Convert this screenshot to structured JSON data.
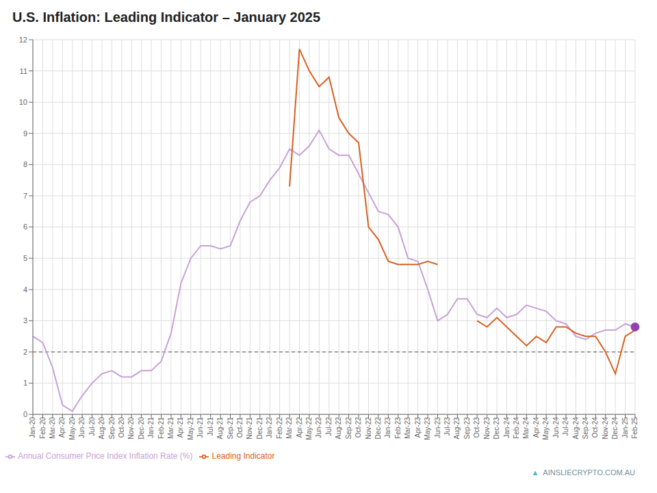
{
  "chart_data": {
    "type": "line",
    "title": "U.S. Inflation: Leading Indicator – January 2025",
    "categories": [
      "Jan-20",
      "Feb-20",
      "Mar-20",
      "Apr-20",
      "May-20",
      "Jun-20",
      "Jul-20",
      "Aug-20",
      "Sep-20",
      "Oct-20",
      "Nov-20",
      "Dec-20",
      "Jan-21",
      "Feb-21",
      "Mar-21",
      "Apr-21",
      "May-21",
      "Jun-21",
      "Jul-21",
      "Aug-21",
      "Sep-21",
      "Oct-21",
      "Nov-21",
      "Dec-21",
      "Jan-22",
      "Feb-22",
      "Mar-22",
      "Apr-22",
      "May-22",
      "Jun-22",
      "Jul-22",
      "Aug-22",
      "Sep-22",
      "Oct-22",
      "Nov-22",
      "Dec-22",
      "Jan-23",
      "Feb-23",
      "Mar-23",
      "Apr-23",
      "May-23",
      "Jun-23",
      "Jul-23",
      "Aug-23",
      "Sep-23",
      "Oct-23",
      "Nov-23",
      "Dec-23",
      "Jan-24",
      "Feb-24",
      "Mar-24",
      "Apr-24",
      "May-24",
      "Jun-24",
      "Jul-24",
      "Aug-24",
      "Sep-24",
      "Oct-24",
      "Nov-24",
      "Dec-24",
      "Jan-25",
      "Feb-25"
    ],
    "series": [
      {
        "name": "Annual Consumer Price Index Inflation Rate (%)",
        "color": "#c8a0d8",
        "values": [
          2.5,
          2.3,
          1.5,
          0.3,
          0.1,
          0.6,
          1.0,
          1.3,
          1.4,
          1.2,
          1.2,
          1.4,
          1.4,
          1.7,
          2.6,
          4.2,
          5.0,
          5.4,
          5.4,
          5.3,
          5.4,
          6.2,
          6.8,
          7.0,
          7.5,
          7.9,
          8.5,
          8.3,
          8.6,
          9.1,
          8.5,
          8.3,
          8.3,
          7.7,
          7.1,
          6.5,
          6.4,
          6.0,
          5.0,
          4.9,
          4.0,
          3.0,
          3.2,
          3.7,
          3.7,
          3.2,
          3.1,
          3.4,
          3.1,
          3.2,
          3.5,
          3.4,
          3.3,
          3.0,
          2.9,
          2.5,
          2.4,
          2.6,
          2.7,
          2.7,
          2.9,
          2.8
        ]
      },
      {
        "name": "Leading Indicator",
        "color": "#d86020",
        "values": [
          null,
          null,
          null,
          null,
          null,
          null,
          null,
          null,
          null,
          null,
          null,
          null,
          null,
          null,
          null,
          null,
          null,
          null,
          null,
          null,
          null,
          null,
          null,
          null,
          null,
          null,
          7.3,
          11.7,
          11.0,
          10.5,
          10.8,
          9.5,
          9.0,
          8.7,
          6.0,
          5.6,
          4.9,
          4.8,
          4.8,
          4.8,
          4.9,
          4.8,
          null,
          null,
          null,
          3.0,
          2.8,
          3.1,
          2.8,
          2.5,
          2.2,
          2.5,
          2.3,
          2.8,
          2.8,
          2.6,
          2.5,
          2.5,
          2.0,
          1.3,
          2.5,
          2.7
        ]
      }
    ],
    "reference_line": {
      "y": 2.0,
      "color": "#555555",
      "line_style": "dashed"
    },
    "highlight": {
      "category": "Feb-25",
      "series": "Annual Consumer Price Index Inflation Rate (%)",
      "color": "#9040b0"
    },
    "annotations": [
      {
        "text": "▲",
        "color": "#4ab8c8"
      },
      {
        "text": "AINSLIECRYPTO.COM.AU",
        "color": "#7090a0"
      }
    ],
    "ylim": [
      0,
      12
    ],
    "yticks": [
      0,
      1,
      2,
      3,
      4,
      5,
      6,
      7,
      8,
      9,
      10,
      11,
      12
    ],
    "grid": true,
    "legend": "bottom"
  }
}
